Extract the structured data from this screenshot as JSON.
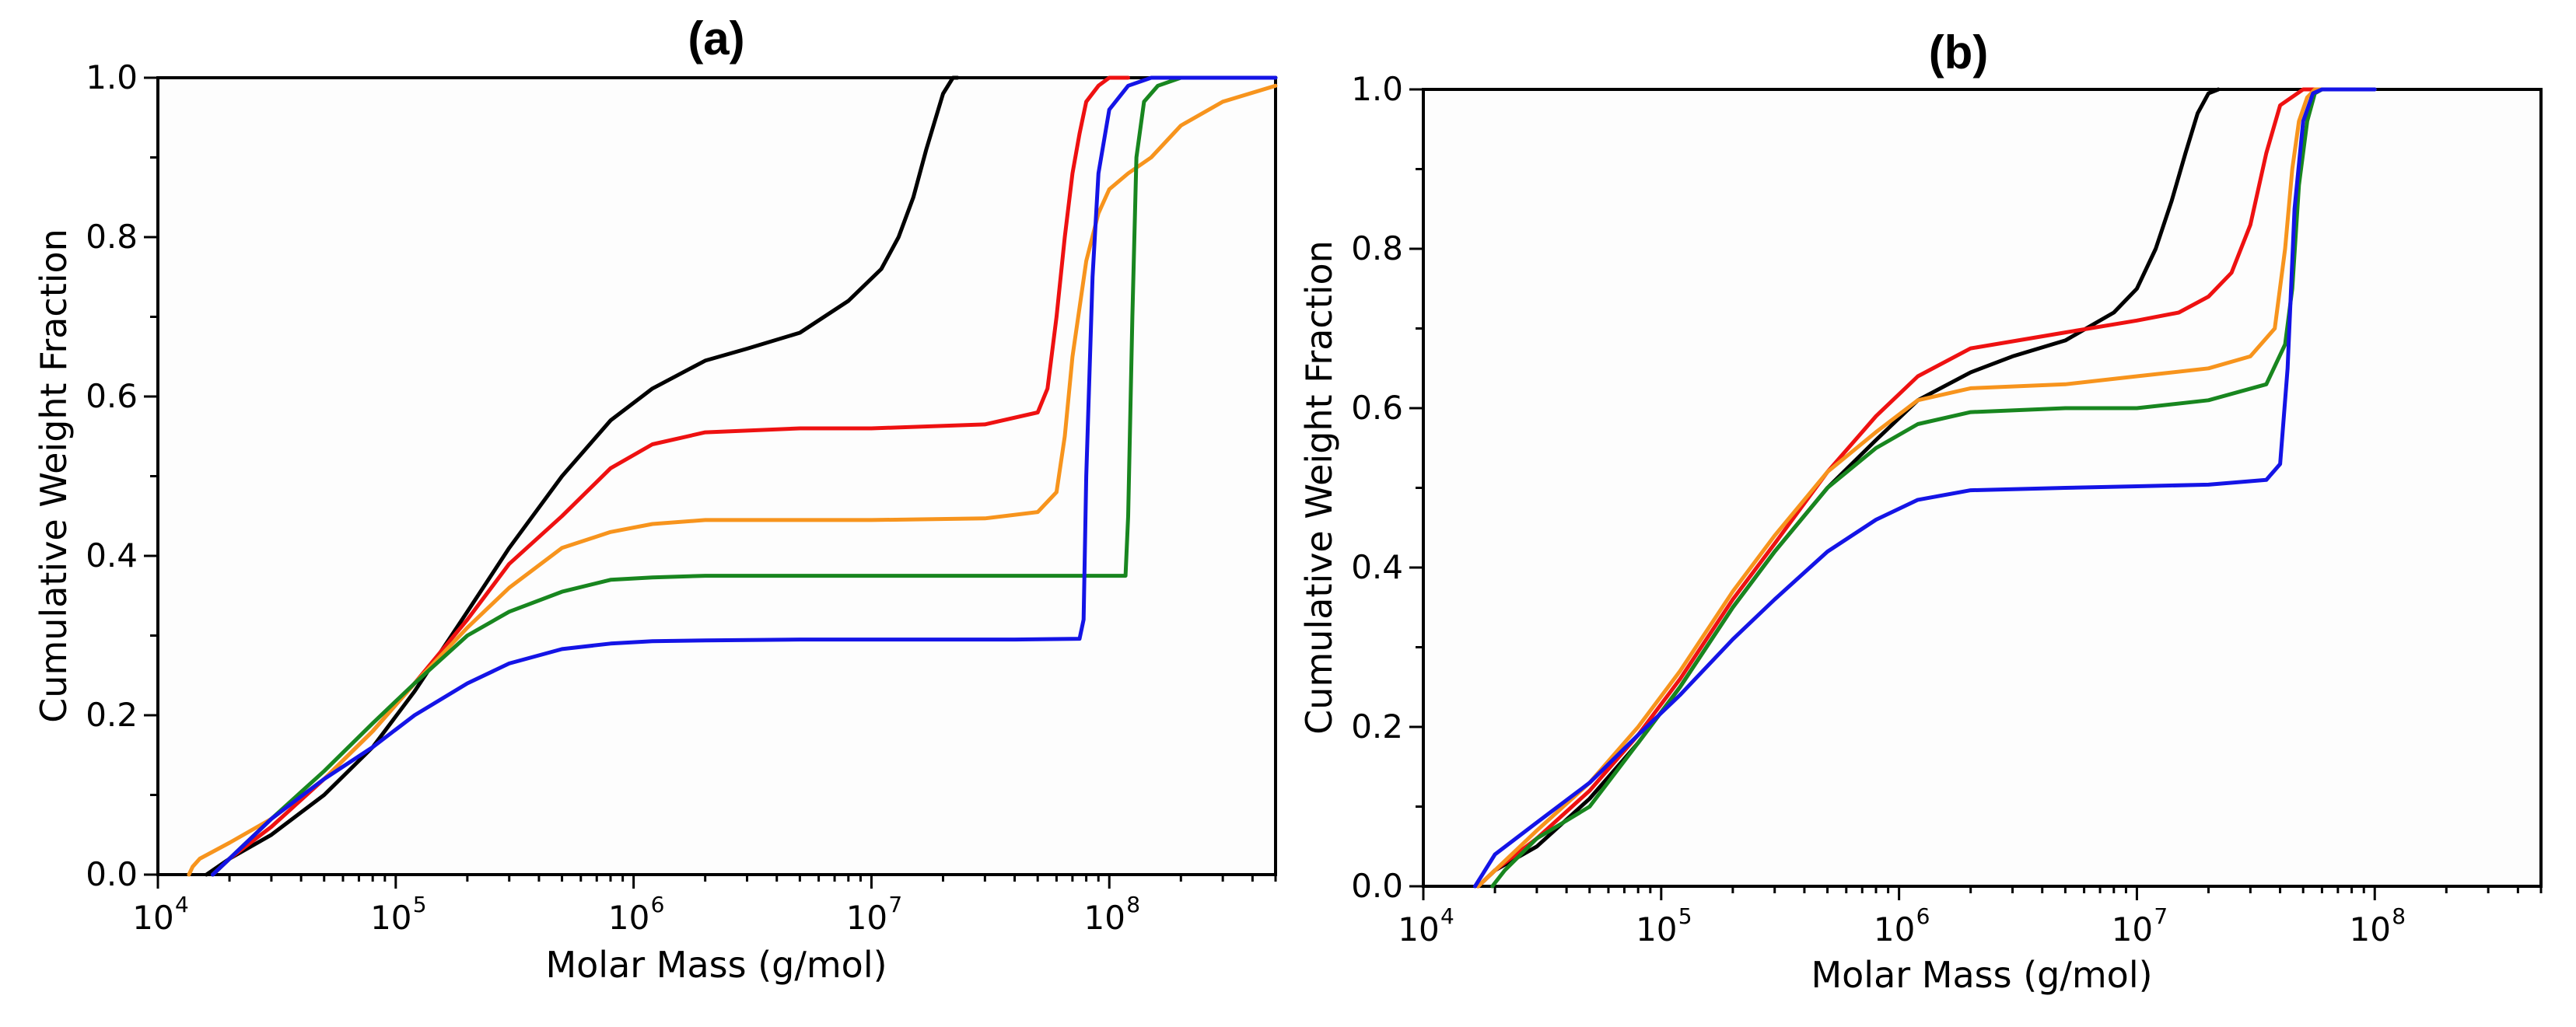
{
  "chart_data": [
    {
      "type": "line",
      "title": "(a)",
      "xlabel": "Molar Mass (g/mol)",
      "ylabel": "Cumulative Weight Fraction",
      "xscale": "log",
      "xlim": [
        10000,
        500000000
      ],
      "ylim": [
        0.0,
        1.0
      ],
      "xticks": [
        {
          "base": "10",
          "exp": "4",
          "value": 10000
        },
        {
          "base": "10",
          "exp": "5",
          "value": 100000
        },
        {
          "base": "10",
          "exp": "6",
          "value": 1000000
        },
        {
          "base": "10",
          "exp": "7",
          "value": 10000000
        },
        {
          "base": "10",
          "exp": "8",
          "value": 100000000
        }
      ],
      "yticks": [
        {
          "label": "0.0",
          "value": 0.0
        },
        {
          "label": "0.2",
          "value": 0.2
        },
        {
          "label": "0.4",
          "value": 0.4
        },
        {
          "label": "0.6",
          "value": 0.6
        },
        {
          "label": "0.8",
          "value": 0.8
        },
        {
          "label": "1.0",
          "value": 1.0
        }
      ],
      "series": [
        {
          "name": "black",
          "color": "#000000",
          "x": [
            16000,
            20000,
            30000,
            50000,
            80000,
            120000,
            200000,
            300000,
            500000,
            800000,
            1200000,
            2000000,
            3000000,
            5000000,
            8000000,
            11000000,
            13000000,
            15000000,
            17000000,
            20000000,
            22000000,
            23000000
          ],
          "y": [
            0.0,
            0.02,
            0.05,
            0.1,
            0.16,
            0.23,
            0.33,
            0.41,
            0.5,
            0.57,
            0.61,
            0.645,
            0.66,
            0.68,
            0.72,
            0.76,
            0.8,
            0.85,
            0.91,
            0.98,
            1.0,
            1.0
          ]
        },
        {
          "name": "red",
          "color": "#ee1111",
          "x": [
            17000,
            20000,
            30000,
            50000,
            80000,
            120000,
            200000,
            300000,
            500000,
            800000,
            1200000,
            2000000,
            5000000,
            10000000,
            30000000,
            50000000,
            55000000,
            60000000,
            65000000,
            70000000,
            75000000,
            80000000,
            90000000,
            100000000,
            120000000
          ],
          "y": [
            0.0,
            0.02,
            0.06,
            0.12,
            0.18,
            0.24,
            0.32,
            0.39,
            0.45,
            0.51,
            0.54,
            0.555,
            0.56,
            0.56,
            0.565,
            0.58,
            0.61,
            0.7,
            0.8,
            0.88,
            0.93,
            0.97,
            0.99,
            1.0,
            1.0
          ]
        },
        {
          "name": "orange",
          "color": "#f7941d",
          "x": [
            13500,
            14000,
            15000,
            20000,
            30000,
            50000,
            80000,
            120000,
            200000,
            300000,
            500000,
            800000,
            1200000,
            2000000,
            5000000,
            10000000,
            30000000,
            50000000,
            60000000,
            65000000,
            70000000,
            80000000,
            90000000,
            100000000,
            120000000,
            150000000,
            200000000,
            300000000,
            500000000
          ],
          "y": [
            0.0,
            0.01,
            0.02,
            0.04,
            0.07,
            0.12,
            0.18,
            0.24,
            0.31,
            0.36,
            0.41,
            0.43,
            0.44,
            0.445,
            0.445,
            0.445,
            0.447,
            0.455,
            0.48,
            0.55,
            0.65,
            0.77,
            0.83,
            0.86,
            0.88,
            0.9,
            0.94,
            0.97,
            0.99
          ]
        },
        {
          "name": "green",
          "color": "#18861f",
          "x": [
            17000,
            20000,
            30000,
            50000,
            80000,
            120000,
            200000,
            300000,
            500000,
            800000,
            1200000,
            2000000,
            5000000,
            10000000,
            50000000,
            100000000,
            117000000,
            120000000,
            125000000,
            130000000,
            140000000,
            160000000,
            200000000,
            300000000,
            500000000
          ],
          "y": [
            0.0,
            0.02,
            0.07,
            0.13,
            0.19,
            0.24,
            0.3,
            0.33,
            0.355,
            0.37,
            0.373,
            0.375,
            0.375,
            0.375,
            0.375,
            0.375,
            0.375,
            0.45,
            0.7,
            0.9,
            0.97,
            0.99,
            1.0,
            1.0,
            1.0
          ]
        },
        {
          "name": "blue",
          "color": "#1414e6",
          "x": [
            17000,
            20000,
            30000,
            50000,
            80000,
            120000,
            200000,
            300000,
            500000,
            800000,
            1200000,
            2000000,
            5000000,
            10000000,
            40000000,
            75000000,
            78000000,
            80000000,
            85000000,
            90000000,
            100000000,
            120000000,
            150000000,
            200000000,
            300000000,
            500000000
          ],
          "y": [
            0.0,
            0.02,
            0.07,
            0.12,
            0.16,
            0.2,
            0.24,
            0.265,
            0.283,
            0.29,
            0.293,
            0.294,
            0.295,
            0.295,
            0.295,
            0.296,
            0.32,
            0.5,
            0.75,
            0.88,
            0.96,
            0.99,
            1.0,
            1.0,
            1.0,
            1.0
          ]
        }
      ]
    },
    {
      "type": "line",
      "title": "(b)",
      "xlabel": "Molar Mass (g/mol)",
      "ylabel": "Cumulative Weight Fraction",
      "xscale": "log",
      "xlim": [
        10000,
        500000000
      ],
      "ylim": [
        0.0,
        1.0
      ],
      "xticks": [
        {
          "base": "10",
          "exp": "4",
          "value": 10000
        },
        {
          "base": "10",
          "exp": "5",
          "value": 100000
        },
        {
          "base": "10",
          "exp": "6",
          "value": 1000000
        },
        {
          "base": "10",
          "exp": "7",
          "value": 10000000
        },
        {
          "base": "10",
          "exp": "8",
          "value": 100000000
        }
      ],
      "yticks": [
        {
          "label": "0.0",
          "value": 0.0
        },
        {
          "label": "0.2",
          "value": 0.2
        },
        {
          "label": "0.4",
          "value": 0.4
        },
        {
          "label": "0.6",
          "value": 0.6
        },
        {
          "label": "0.8",
          "value": 0.8
        },
        {
          "label": "1.0",
          "value": 1.0
        }
      ],
      "series": [
        {
          "name": "black",
          "color": "#000000",
          "x": [
            17000,
            20000,
            30000,
            50000,
            80000,
            120000,
            200000,
            300000,
            500000,
            800000,
            1200000,
            2000000,
            3000000,
            5000000,
            8000000,
            10000000,
            12000000,
            14000000,
            16000000,
            18000000,
            20000000,
            22000000
          ],
          "y": [
            0.0,
            0.02,
            0.05,
            0.11,
            0.18,
            0.25,
            0.35,
            0.42,
            0.5,
            0.56,
            0.61,
            0.645,
            0.665,
            0.685,
            0.72,
            0.75,
            0.8,
            0.86,
            0.92,
            0.97,
            0.995,
            1.0
          ]
        },
        {
          "name": "red",
          "color": "#ee1111",
          "x": [
            17000,
            20000,
            30000,
            50000,
            80000,
            120000,
            200000,
            300000,
            500000,
            800000,
            1200000,
            2000000,
            5000000,
            10000000,
            15000000,
            20000000,
            25000000,
            30000000,
            35000000,
            40000000,
            50000000,
            60000000
          ],
          "y": [
            0.0,
            0.02,
            0.06,
            0.12,
            0.19,
            0.26,
            0.36,
            0.43,
            0.52,
            0.59,
            0.64,
            0.675,
            0.695,
            0.71,
            0.72,
            0.74,
            0.77,
            0.83,
            0.92,
            0.98,
            1.0,
            1.0
          ]
        },
        {
          "name": "orange",
          "color": "#f7941d",
          "x": [
            17000,
            20000,
            30000,
            50000,
            80000,
            120000,
            200000,
            300000,
            500000,
            800000,
            1200000,
            2000000,
            5000000,
            10000000,
            20000000,
            30000000,
            38000000,
            42000000,
            45000000,
            48000000,
            52000000,
            56000000,
            60000000,
            100000000
          ],
          "y": [
            0.0,
            0.02,
            0.07,
            0.13,
            0.2,
            0.27,
            0.37,
            0.44,
            0.52,
            0.57,
            0.61,
            0.625,
            0.63,
            0.64,
            0.65,
            0.665,
            0.7,
            0.8,
            0.9,
            0.96,
            0.99,
            1.0,
            1.0,
            1.0
          ]
        },
        {
          "name": "green",
          "color": "#18861f",
          "x": [
            19500,
            22000,
            30000,
            50000,
            80000,
            120000,
            200000,
            300000,
            500000,
            800000,
            1200000,
            2000000,
            5000000,
            10000000,
            20000000,
            35000000,
            42000000,
            45000000,
            48000000,
            52000000,
            56000000,
            60000000,
            100000000
          ],
          "y": [
            0.0,
            0.02,
            0.06,
            0.1,
            0.18,
            0.25,
            0.35,
            0.42,
            0.5,
            0.55,
            0.58,
            0.595,
            0.6,
            0.6,
            0.61,
            0.63,
            0.68,
            0.75,
            0.88,
            0.96,
            0.995,
            1.0,
            1.0
          ]
        },
        {
          "name": "blue",
          "color": "#1414e6",
          "x": [
            16500,
            20000,
            30000,
            50000,
            80000,
            120000,
            200000,
            300000,
            500000,
            800000,
            1200000,
            2000000,
            5000000,
            10000000,
            20000000,
            35000000,
            40000000,
            43000000,
            46000000,
            50000000,
            55000000,
            60000000,
            100000000
          ],
          "y": [
            0.0,
            0.04,
            0.08,
            0.13,
            0.19,
            0.24,
            0.31,
            0.36,
            0.42,
            0.46,
            0.485,
            0.497,
            0.5,
            0.502,
            0.504,
            0.51,
            0.53,
            0.65,
            0.85,
            0.96,
            0.995,
            1.0,
            1.0
          ]
        }
      ]
    }
  ]
}
